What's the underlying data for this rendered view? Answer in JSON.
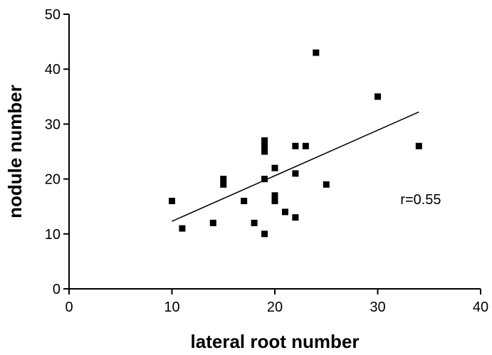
{
  "chart_data": {
    "type": "scatter",
    "title": "",
    "xlabel": "lateral root number",
    "ylabel": "nodule number",
    "xlim": [
      0,
      40
    ],
    "ylim": [
      0,
      50
    ],
    "x_ticks": [
      "0",
      "10",
      "20",
      "30",
      "40"
    ],
    "y_ticks": [
      "0",
      "10",
      "20",
      "30",
      "40",
      "50"
    ],
    "grid": false,
    "legend": "none",
    "marker": "square",
    "colors": {
      "points": "#000000",
      "line": "#000000",
      "axes": "#000000"
    },
    "series": [
      {
        "points": [
          {
            "x": 10,
            "y": 16
          },
          {
            "x": 11,
            "y": 11
          },
          {
            "x": 14,
            "y": 12
          },
          {
            "x": 15,
            "y": 19
          },
          {
            "x": 15,
            "y": 20
          },
          {
            "x": 17,
            "y": 16
          },
          {
            "x": 18,
            "y": 12
          },
          {
            "x": 19,
            "y": 10
          },
          {
            "x": 19,
            "y": 20
          },
          {
            "x": 19,
            "y": 25
          },
          {
            "x": 19,
            "y": 26
          },
          {
            "x": 19,
            "y": 27
          },
          {
            "x": 20,
            "y": 16
          },
          {
            "x": 20,
            "y": 17
          },
          {
            "x": 20,
            "y": 22
          },
          {
            "x": 21,
            "y": 14
          },
          {
            "x": 22,
            "y": 13
          },
          {
            "x": 22,
            "y": 21
          },
          {
            "x": 22,
            "y": 26
          },
          {
            "x": 23,
            "y": 26
          },
          {
            "x": 24,
            "y": 43
          },
          {
            "x": 25,
            "y": 19
          },
          {
            "x": 30,
            "y": 35
          },
          {
            "x": 34,
            "y": 26
          }
        ]
      }
    ],
    "fit_line": {
      "x": [
        10,
        34
      ],
      "y": [
        12.3,
        32.2
      ]
    },
    "annotations": [
      {
        "text": "r=0.55",
        "x": 32.2,
        "y": 16.3
      }
    ]
  }
}
